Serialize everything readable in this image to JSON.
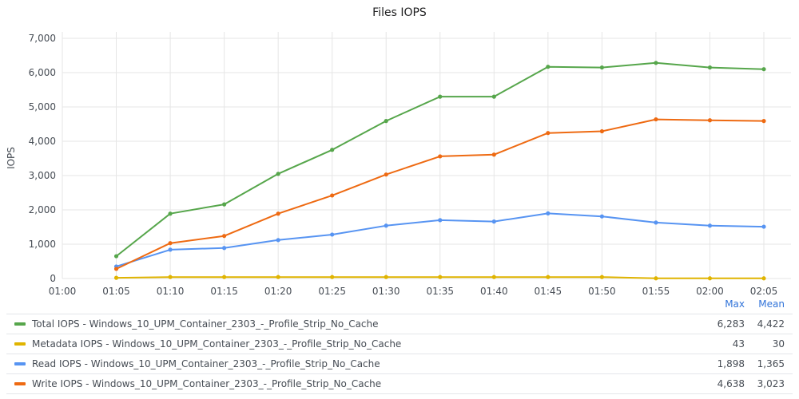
{
  "chart_data": {
    "type": "line",
    "title": "Files IOPS",
    "ylabel": "IOPS",
    "xlabel": "",
    "x": [
      "01:00",
      "01:05",
      "01:10",
      "01:15",
      "01:20",
      "01:25",
      "01:30",
      "01:35",
      "01:40",
      "01:45",
      "01:50",
      "01:55",
      "02:00",
      "02:05"
    ],
    "ylim": [
      0,
      7000
    ],
    "yticks": [
      "0",
      "1,000",
      "2,000",
      "3,000",
      "4,000",
      "5,000",
      "6,000",
      "7,000"
    ],
    "grid": true,
    "legend_placement": "bottom",
    "legend_columns": [
      "Max",
      "Mean"
    ],
    "series": [
      {
        "name": "Total IOPS - Windows_10_UPM_Container_2303_-_Profile_Strip_No_Cache",
        "color": "#56a64b",
        "values": [
          null,
          650,
          1890,
          2160,
          3050,
          3750,
          4590,
          5300,
          5300,
          6170,
          6150,
          6283,
          6150,
          6100
        ],
        "max": "6,283",
        "mean": "4,422"
      },
      {
        "name": "Metadata IOPS - Windows_10_UPM_Container_2303_-_Profile_Strip_No_Cache",
        "color": "#e0b400",
        "values": [
          null,
          20,
          43,
          43,
          43,
          43,
          43,
          43,
          43,
          43,
          43,
          5,
          5,
          5
        ],
        "max": "43",
        "mean": "30"
      },
      {
        "name": "Read IOPS - Windows_10_UPM_Container_2303_-_Profile_Strip_No_Cache",
        "color": "#5794f2",
        "values": [
          null,
          350,
          840,
          890,
          1120,
          1280,
          1540,
          1700,
          1660,
          1898,
          1810,
          1630,
          1540,
          1510
        ],
        "max": "1,898",
        "mean": "1,365"
      },
      {
        "name": "Write IOPS - Windows_10_UPM_Container_2303_-_Profile_Strip_No_Cache",
        "color": "#ee6a12",
        "values": [
          null,
          280,
          1030,
          1240,
          1890,
          2420,
          3030,
          3560,
          3610,
          4240,
          4290,
          4638,
          4610,
          4590
        ],
        "max": "4,638",
        "mean": "3,023"
      }
    ]
  }
}
